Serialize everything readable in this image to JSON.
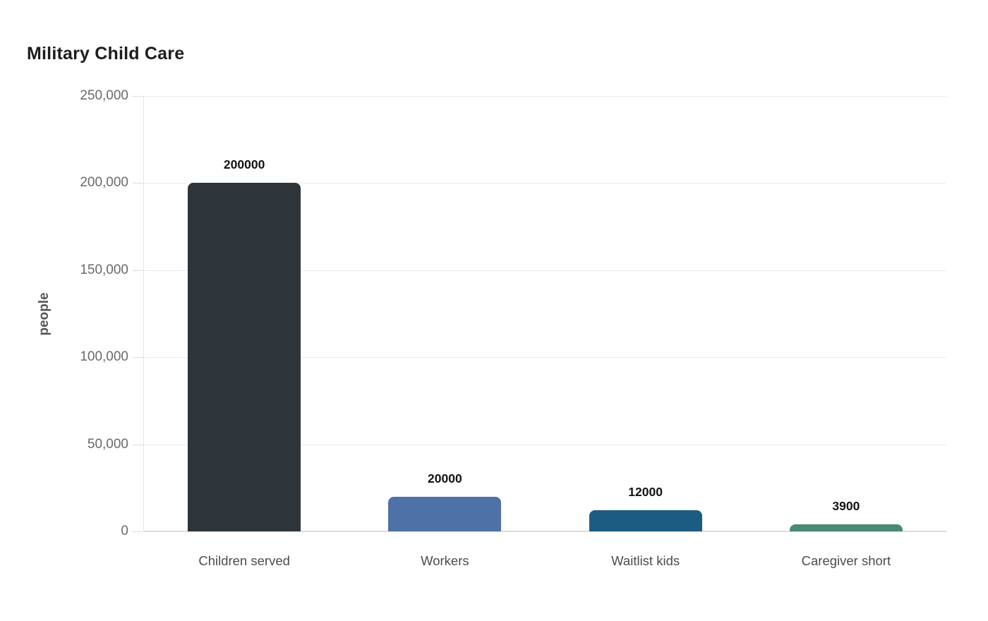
{
  "title": "Military Child Care",
  "chart_data": {
    "type": "bar",
    "title": "Military Child Care",
    "categories": [
      "Children served",
      "Workers",
      "Waitlist kids",
      "Caregiver short"
    ],
    "values": [
      200000,
      20000,
      12000,
      3900
    ],
    "value_labels": [
      "200000",
      "20000",
      "12000",
      "3900"
    ],
    "bar_colors": [
      "#2d353a",
      "#4e72a7",
      "#1d5c82",
      "#4b8a72"
    ],
    "xlabel": "",
    "ylabel": "people",
    "ylim": [
      0,
      250000
    ],
    "yticks": [
      0,
      50000,
      100000,
      150000,
      200000,
      250000
    ],
    "ytick_labels": [
      "0",
      "50,000",
      "100,000",
      "150,000",
      "200,000",
      "250,000"
    ],
    "grid": true,
    "legend": false,
    "background": "#ffffff",
    "gridline_color": "#ebebeb",
    "axis_line_color": "#e4e4e4",
    "title_color": "#1d1d1d",
    "tick_label_color": "#6a6a6a",
    "category_label_color": "#4c4c4c",
    "value_label_color": "#141414"
  }
}
